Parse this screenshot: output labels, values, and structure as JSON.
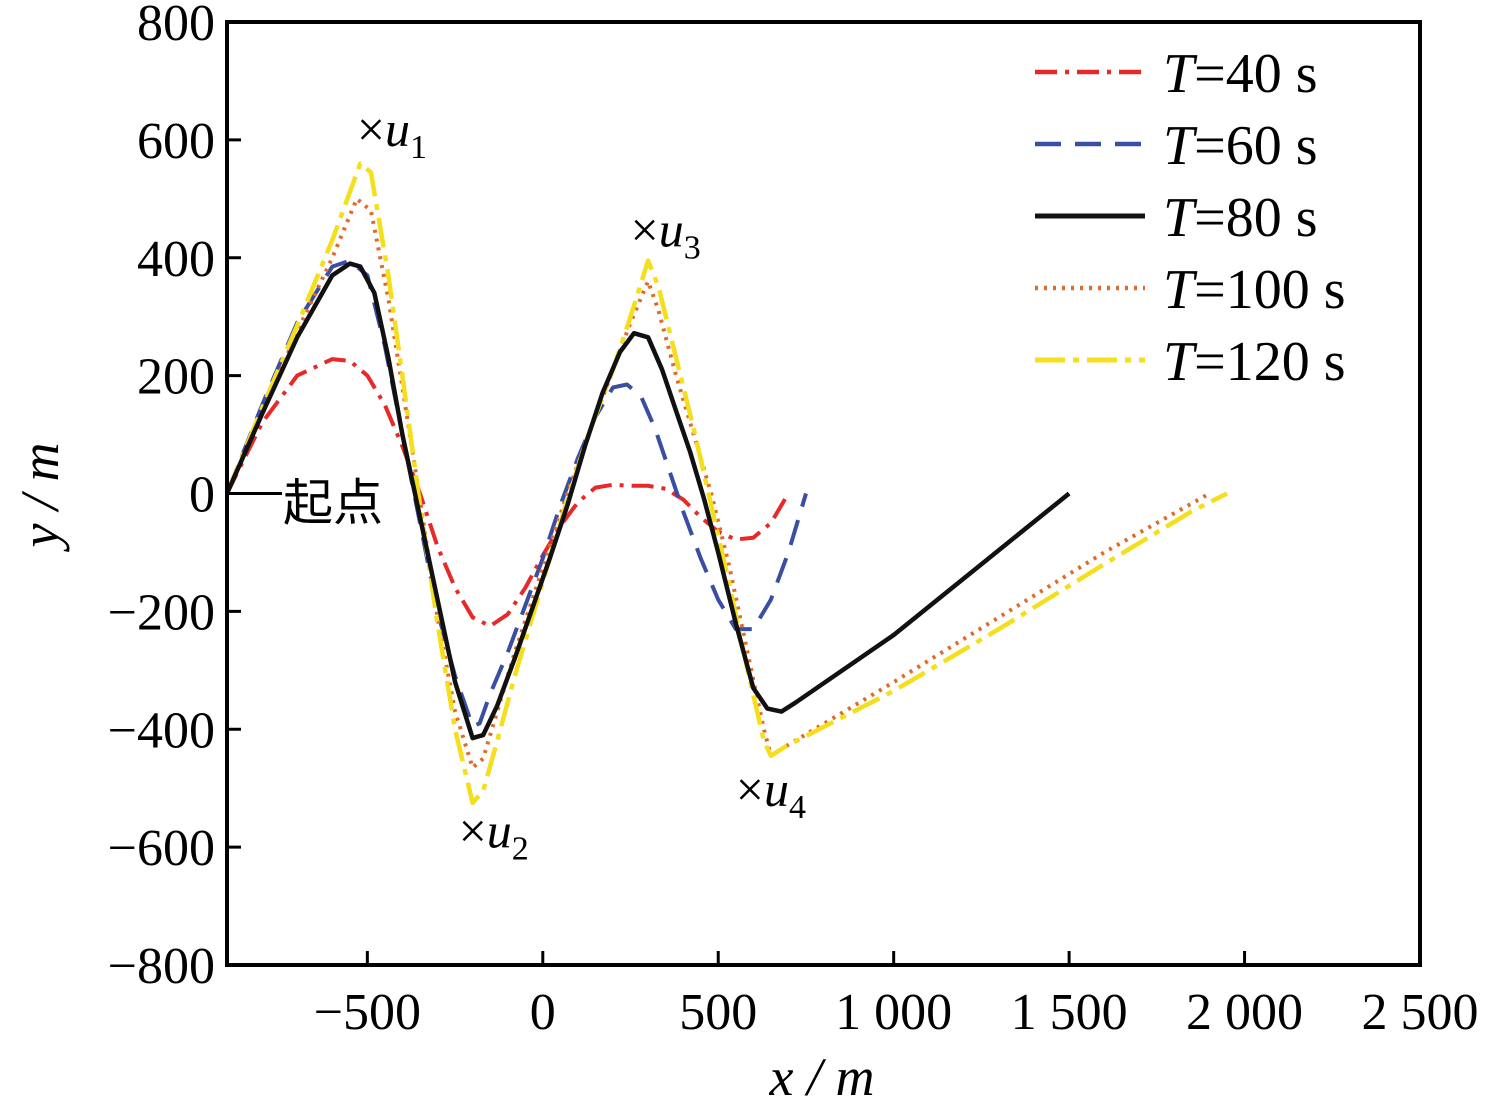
{
  "chart_data": {
    "type": "line",
    "xlabel": "x / m",
    "ylabel": "y / m",
    "xlim": [
      -900,
      2500
    ],
    "ylim": [
      -800,
      800
    ],
    "xticks": [
      -500,
      0,
      500,
      1000,
      1500,
      2000,
      2500
    ],
    "xtick_labels": [
      "−500",
      "0",
      "500",
      "1 000",
      "1 500",
      "2 000",
      "2 500"
    ],
    "yticks": [
      800,
      600,
      400,
      200,
      0,
      -200,
      -400,
      -600,
      -800
    ],
    "ytick_labels": [
      "800",
      "600",
      "400",
      "200",
      "0",
      "−200",
      "−400",
      "−600",
      "−800"
    ],
    "grid": false,
    "legend_position": "top-right",
    "start_label": "起点",
    "start_point": [
      -900,
      0
    ],
    "annotations": [
      {
        "marker": "×",
        "text": "u",
        "sub": "1",
        "x": -530,
        "y": 620
      },
      {
        "marker": "×",
        "text": "u",
        "sub": "2",
        "x": -240,
        "y": -570
      },
      {
        "marker": "×",
        "text": "u",
        "sub": "3",
        "x": 250,
        "y": 450
      },
      {
        "marker": "×",
        "text": "u",
        "sub": "4",
        "x": 550,
        "y": -500
      }
    ],
    "series": [
      {
        "name": "T=40 s",
        "label_var": "T",
        "label_rest": "=40 s",
        "color": "#e8292a",
        "dash": "22,8,4,8",
        "width": 4,
        "points": [
          [
            -900,
            0
          ],
          [
            -800,
            120
          ],
          [
            -700,
            200
          ],
          [
            -600,
            228
          ],
          [
            -550,
            225
          ],
          [
            -500,
            200
          ],
          [
            -450,
            150
          ],
          [
            -400,
            80
          ],
          [
            -350,
            0
          ],
          [
            -300,
            -90
          ],
          [
            -250,
            -160
          ],
          [
            -200,
            -210
          ],
          [
            -150,
            -225
          ],
          [
            -100,
            -205
          ],
          [
            -50,
            -160
          ],
          [
            0,
            -105
          ],
          [
            50,
            -55
          ],
          [
            100,
            -15
          ],
          [
            150,
            10
          ],
          [
            200,
            15
          ],
          [
            250,
            13
          ],
          [
            300,
            13
          ],
          [
            350,
            8
          ],
          [
            400,
            -10
          ],
          [
            450,
            -40
          ],
          [
            500,
            -65
          ],
          [
            550,
            -78
          ],
          [
            600,
            -75
          ],
          [
            650,
            -50
          ],
          [
            700,
            0
          ]
        ]
      },
      {
        "name": "T=60 s",
        "label_var": "T",
        "label_rest": "=60 s",
        "color": "#3a4ea3",
        "dash": "26,14",
        "width": 4,
        "points": [
          [
            -900,
            0
          ],
          [
            -800,
            150
          ],
          [
            -700,
            290
          ],
          [
            -600,
            385
          ],
          [
            -550,
            395
          ],
          [
            -500,
            370
          ],
          [
            -450,
            250
          ],
          [
            -400,
            100
          ],
          [
            -350,
            -50
          ],
          [
            -300,
            -200
          ],
          [
            -250,
            -310
          ],
          [
            -200,
            -395
          ],
          [
            -180,
            -390
          ],
          [
            -150,
            -340
          ],
          [
            -100,
            -270
          ],
          [
            -50,
            -190
          ],
          [
            0,
            -110
          ],
          [
            50,
            -20
          ],
          [
            100,
            60
          ],
          [
            150,
            130
          ],
          [
            200,
            180
          ],
          [
            240,
            185
          ],
          [
            280,
            165
          ],
          [
            320,
            110
          ],
          [
            360,
            40
          ],
          [
            400,
            -30
          ],
          [
            450,
            -110
          ],
          [
            500,
            -180
          ],
          [
            550,
            -230
          ],
          [
            600,
            -230
          ],
          [
            650,
            -180
          ],
          [
            700,
            -100
          ],
          [
            750,
            0
          ]
        ]
      },
      {
        "name": "T=80 s",
        "label_var": "T",
        "label_rest": "=80 s",
        "color": "#111111",
        "dash": "",
        "width": 4.5,
        "points": [
          [
            -900,
            0
          ],
          [
            -800,
            135
          ],
          [
            -700,
            265
          ],
          [
            -600,
            370
          ],
          [
            -550,
            390
          ],
          [
            -520,
            385
          ],
          [
            -480,
            340
          ],
          [
            -440,
            230
          ],
          [
            -400,
            100
          ],
          [
            -350,
            -40
          ],
          [
            -300,
            -180
          ],
          [
            -250,
            -320
          ],
          [
            -200,
            -415
          ],
          [
            -170,
            -410
          ],
          [
            -130,
            -360
          ],
          [
            -80,
            -280
          ],
          [
            -30,
            -195
          ],
          [
            20,
            -110
          ],
          [
            70,
            -20
          ],
          [
            120,
            80
          ],
          [
            170,
            170
          ],
          [
            220,
            240
          ],
          [
            260,
            272
          ],
          [
            300,
            265
          ],
          [
            340,
            210
          ],
          [
            380,
            140
          ],
          [
            420,
            70
          ],
          [
            460,
            -10
          ],
          [
            500,
            -100
          ],
          [
            550,
            -220
          ],
          [
            600,
            -330
          ],
          [
            640,
            -365
          ],
          [
            680,
            -370
          ],
          [
            720,
            -355
          ],
          [
            1000,
            -240
          ],
          [
            1250,
            -120
          ],
          [
            1500,
            0
          ]
        ]
      },
      {
        "name": "T=100 s",
        "label_var": "T",
        "label_rest": "=100 s",
        "color": "#e06a2a",
        "dash": "3,6",
        "width": 4,
        "points": [
          [
            -900,
            0
          ],
          [
            -800,
            135
          ],
          [
            -700,
            275
          ],
          [
            -600,
            400
          ],
          [
            -530,
            500
          ],
          [
            -490,
            480
          ],
          [
            -440,
            330
          ],
          [
            -400,
            180
          ],
          [
            -350,
            -10
          ],
          [
            -300,
            -210
          ],
          [
            -250,
            -370
          ],
          [
            -200,
            -465
          ],
          [
            -170,
            -450
          ],
          [
            -130,
            -370
          ],
          [
            -80,
            -270
          ],
          [
            -30,
            -180
          ],
          [
            20,
            -90
          ],
          [
            70,
            0
          ],
          [
            130,
            100
          ],
          [
            200,
            210
          ],
          [
            250,
            290
          ],
          [
            300,
            360
          ],
          [
            330,
            310
          ],
          [
            380,
            200
          ],
          [
            430,
            100
          ],
          [
            480,
            0
          ],
          [
            530,
            -120
          ],
          [
            580,
            -260
          ],
          [
            630,
            -400
          ],
          [
            650,
            -445
          ],
          [
            690,
            -430
          ],
          [
            1000,
            -320
          ],
          [
            1300,
            -210
          ],
          [
            1600,
            -100
          ],
          [
            1900,
            0
          ]
        ]
      },
      {
        "name": "T=120 s",
        "label_var": "T",
        "label_rest": "=120 s",
        "color": "#f5de1b",
        "dash": "30,8,6,8",
        "width": 4.5,
        "points": [
          [
            -900,
            0
          ],
          [
            -800,
            145
          ],
          [
            -700,
            285
          ],
          [
            -600,
            430
          ],
          [
            -520,
            560
          ],
          [
            -490,
            545
          ],
          [
            -440,
            370
          ],
          [
            -400,
            200
          ],
          [
            -350,
            -20
          ],
          [
            -300,
            -220
          ],
          [
            -250,
            -400
          ],
          [
            -200,
            -525
          ],
          [
            -170,
            -505
          ],
          [
            -130,
            -420
          ],
          [
            -80,
            -310
          ],
          [
            -30,
            -210
          ],
          [
            20,
            -110
          ],
          [
            70,
            -10
          ],
          [
            130,
            100
          ],
          [
            200,
            210
          ],
          [
            250,
            300
          ],
          [
            300,
            395
          ],
          [
            330,
            350
          ],
          [
            380,
            230
          ],
          [
            430,
            110
          ],
          [
            480,
            -20
          ],
          [
            530,
            -150
          ],
          [
            580,
            -290
          ],
          [
            630,
            -420
          ],
          [
            650,
            -445
          ],
          [
            690,
            -430
          ],
          [
            1000,
            -335
          ],
          [
            1300,
            -230
          ],
          [
            1600,
            -120
          ],
          [
            1850,
            -30
          ],
          [
            1950,
            0
          ]
        ]
      }
    ]
  }
}
